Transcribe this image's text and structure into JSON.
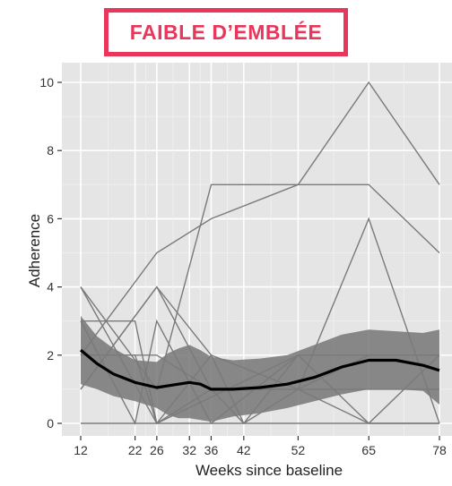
{
  "banner": {
    "label": "FAIBLE D’EMBLÉE",
    "color": "#e8375a"
  },
  "chart_data": {
    "type": "line",
    "title": "",
    "xlabel": "Weeks since baseline",
    "ylabel": "Adherence",
    "x_ticks": [
      12,
      22,
      26,
      32,
      36,
      42,
      52,
      65,
      78
    ],
    "y_ticks": [
      0,
      2,
      4,
      6,
      8,
      10
    ],
    "xlim": [
      9,
      78
    ],
    "ylim": [
      -0.4,
      10.5
    ],
    "grid": true,
    "panel_color": "#e5e5e5",
    "series": [
      {
        "values": [
          [
            12,
            3
          ],
          [
            22,
            3
          ],
          [
            26,
            0
          ],
          [
            52,
            2
          ],
          [
            65,
            2
          ],
          [
            78,
            2
          ]
        ]
      },
      {
        "values": [
          [
            12,
            4
          ],
          [
            26,
            1
          ],
          [
            36,
            7
          ],
          [
            52,
            7
          ],
          [
            65,
            7
          ],
          [
            78,
            5
          ]
        ]
      },
      {
        "values": [
          [
            12,
            2
          ],
          [
            26,
            5
          ],
          [
            36,
            6
          ],
          [
            52,
            7
          ],
          [
            65,
            10
          ],
          [
            78,
            7
          ]
        ]
      },
      {
        "values": [
          [
            12,
            1
          ],
          [
            26,
            4
          ],
          [
            36,
            2
          ],
          [
            52,
            1
          ],
          [
            65,
            6
          ],
          [
            78,
            0
          ]
        ]
      },
      {
        "values": [
          [
            12,
            3
          ],
          [
            22,
            0
          ],
          [
            26,
            3
          ],
          [
            36,
            0
          ],
          [
            52,
            2
          ],
          [
            65,
            0
          ],
          [
            78,
            2
          ]
        ]
      },
      {
        "values": [
          [
            12,
            4
          ],
          [
            26,
            0
          ],
          [
            36,
            2
          ],
          [
            42,
            0
          ],
          [
            52,
            1
          ],
          [
            65,
            1
          ],
          [
            78,
            1
          ]
        ]
      },
      {
        "values": [
          [
            12,
            2
          ],
          [
            22,
            2
          ],
          [
            26,
            0
          ],
          [
            36,
            1
          ],
          [
            52,
            1
          ],
          [
            65,
            0
          ],
          [
            78,
            0
          ]
        ]
      },
      {
        "values": [
          [
            12,
            0
          ],
          [
            26,
            0
          ],
          [
            36,
            0
          ],
          [
            52,
            0
          ],
          [
            65,
            0
          ],
          [
            78,
            0
          ]
        ]
      },
      {
        "values": [
          [
            12,
            1
          ],
          [
            26,
            4
          ],
          [
            36,
            1
          ],
          [
            42,
            0
          ],
          [
            52,
            2
          ],
          [
            65,
            2
          ],
          [
            78,
            2
          ]
        ]
      },
      {
        "values": [
          [
            12,
            2
          ],
          [
            26,
            2
          ],
          [
            36,
            1
          ],
          [
            52,
            1
          ],
          [
            65,
            2
          ],
          [
            78,
            2
          ]
        ]
      }
    ],
    "smooth": {
      "x": [
        12,
        15,
        18,
        22,
        26,
        28,
        30,
        32,
        34,
        36,
        40,
        45,
        50,
        55,
        60,
        65,
        70,
        75,
        78
      ],
      "y": [
        2.15,
        1.75,
        1.45,
        1.2,
        1.05,
        1.1,
        1.15,
        1.2,
        1.15,
        1.0,
        1.0,
        1.05,
        1.15,
        1.35,
        1.65,
        1.85,
        1.85,
        1.7,
        1.55
      ],
      "upper": [
        3.15,
        2.55,
        2.2,
        1.85,
        1.8,
        2.05,
        2.2,
        2.3,
        2.15,
        1.95,
        1.85,
        1.9,
        2.0,
        2.3,
        2.6,
        2.75,
        2.7,
        2.65,
        2.75
      ],
      "lower": [
        1.15,
        1.0,
        0.8,
        0.65,
        0.45,
        0.25,
        0.15,
        0.15,
        0.1,
        0.05,
        0.2,
        0.3,
        0.45,
        0.65,
        0.85,
        1.0,
        1.0,
        0.95,
        0.55
      ]
    }
  }
}
